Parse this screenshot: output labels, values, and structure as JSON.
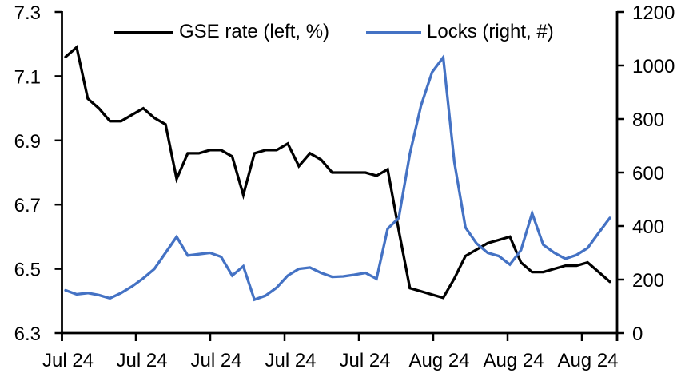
{
  "page": {
    "background": "#ffffff"
  },
  "chart_data": {
    "type": "line",
    "title": "",
    "grid": false,
    "legend_position": "top",
    "x_tick_labels": [
      "Jul 24",
      "Jul 24",
      "Jul 24",
      "Jul 24",
      "Jul 24",
      "Aug 24",
      "Aug 24",
      "Aug 24"
    ],
    "x_description": "daily observations, one tick per week",
    "left_axis": {
      "range": [
        6.3,
        7.3
      ],
      "tick_labels": [
        "7.3",
        "7.1",
        "6.9",
        "6.7",
        "6.5",
        "6.3"
      ],
      "tick_values": [
        7.3,
        7.1,
        6.9,
        6.7,
        6.5,
        6.3
      ]
    },
    "right_axis": {
      "range": [
        0,
        1200
      ],
      "tick_labels": [
        "1200",
        "1000",
        "800",
        "600",
        "400",
        "200",
        "0"
      ],
      "tick_values": [
        1200,
        1000,
        800,
        600,
        400,
        200,
        0
      ]
    },
    "series": [
      {
        "name": "GSE rate (left, %)",
        "axis": "left",
        "color": "#000000",
        "values": [
          7.16,
          7.19,
          7.03,
          7.0,
          6.96,
          6.96,
          6.98,
          7.0,
          6.97,
          6.95,
          6.78,
          6.86,
          6.86,
          6.87,
          6.87,
          6.85,
          6.73,
          6.86,
          6.87,
          6.87,
          6.89,
          6.82,
          6.86,
          6.84,
          6.8,
          6.8,
          6.8,
          6.8,
          6.79,
          6.81,
          6.62,
          6.44,
          6.43,
          6.42,
          6.41,
          6.47,
          6.54,
          6.56,
          6.58,
          6.59,
          6.6,
          6.52,
          6.49,
          6.49,
          6.5,
          6.51,
          6.51,
          6.52,
          6.49,
          6.46
        ]
      },
      {
        "name": "Locks (right, #)",
        "axis": "right",
        "color": "#4472C4",
        "values": [
          160,
          145,
          150,
          142,
          130,
          150,
          175,
          205,
          240,
          300,
          360,
          290,
          295,
          300,
          285,
          215,
          250,
          125,
          140,
          170,
          215,
          240,
          245,
          225,
          210,
          212,
          218,
          225,
          203,
          390,
          430,
          670,
          850,
          975,
          1030,
          640,
          395,
          335,
          300,
          288,
          256,
          310,
          448,
          330,
          300,
          278,
          292,
          318,
          375,
          430
        ]
      }
    ]
  }
}
